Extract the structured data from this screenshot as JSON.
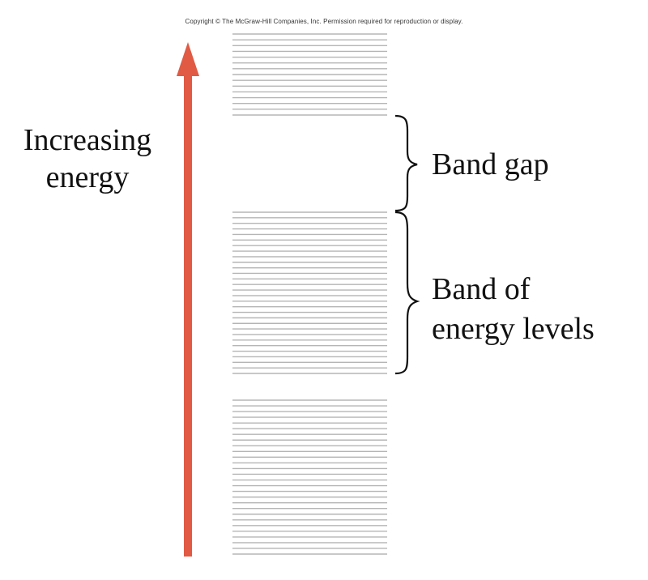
{
  "copyright": "Copyright © The McGraw-Hill Companies, Inc. Permission required for reproduction or display.",
  "axis": {
    "label_line1": "Increasing",
    "label_line2": "energy",
    "arrow_color": "#e05a44"
  },
  "annotations": {
    "band_gap": "Band gap",
    "band_line1": "Band of",
    "band_line2": "energy levels"
  },
  "bands": {
    "line_color": "#b5b5b5",
    "upper_band_line_count": 15,
    "middle_band_line_count": 30,
    "lower_band_line_count": 28
  }
}
